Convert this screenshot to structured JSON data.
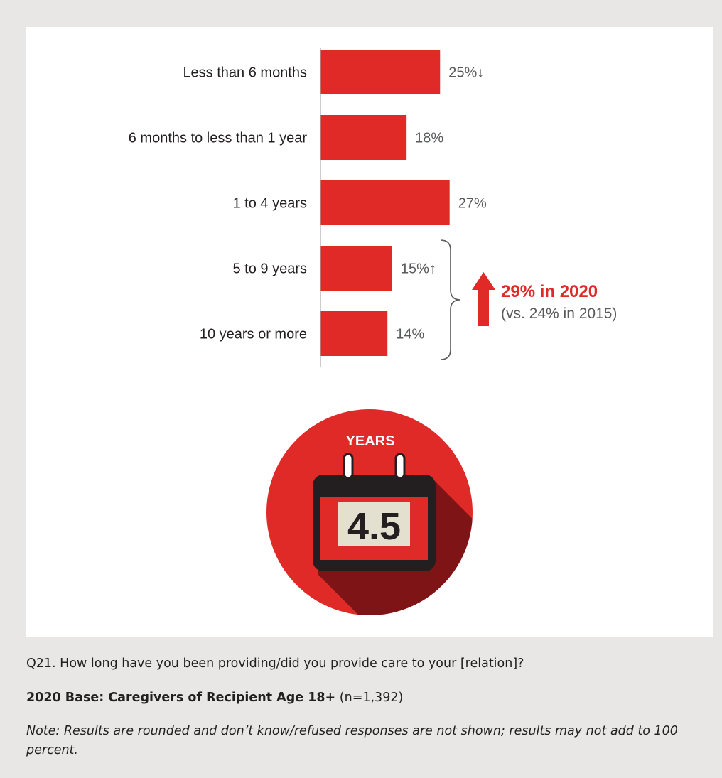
{
  "chart_data": {
    "type": "bar",
    "orientation": "horizontal",
    "categories": [
      "Less than 6 months",
      "6 months to less than 1 year",
      "1 to 4 years",
      "5 to 9 years",
      "10 years or more"
    ],
    "values": [
      25,
      18,
      27,
      15,
      14
    ],
    "value_labels": [
      "25%↓",
      "18%",
      "27%",
      "15%↑",
      "14%"
    ],
    "grid": false,
    "bar_color": "#e02a27"
  },
  "callout": {
    "main": "29% in 2020",
    "sub": "(vs. 24% in 2015)",
    "arrow_color": "#e02a27"
  },
  "icon": {
    "name": "calendar-icon",
    "header": "YEARS",
    "value": "4.5",
    "circle_color": "#e02a27",
    "shadow_color": "#7e1416"
  },
  "footer": {
    "question": "Q21.  How long have you been providing/did you provide care to your [relation]?",
    "base_bold": "2020 Base: Caregivers of Recipient Age 18+",
    "base_rest": " (n=1,392)",
    "note": "Note: Results are rounded and don’t know/refused responses are not shown; results may not add to 100 percent."
  },
  "colors": {
    "background": "#e9e7e5",
    "panel": "#ffffff",
    "accent": "#e02a27"
  }
}
